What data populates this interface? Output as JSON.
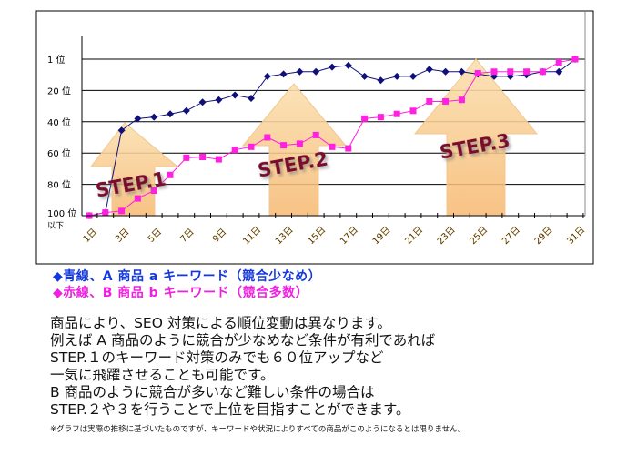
{
  "chart_data": {
    "type": "line",
    "title": "",
    "xlabel": "",
    "ylabel": "",
    "x": [
      1,
      2,
      3,
      4,
      5,
      6,
      7,
      8,
      9,
      10,
      11,
      12,
      13,
      14,
      15,
      16,
      17,
      18,
      19,
      20,
      21,
      22,
      23,
      24,
      25,
      26,
      27,
      28,
      29,
      30,
      31
    ],
    "x_tick_labels": [
      "1日",
      "3日",
      "5日",
      "7日",
      "9日",
      "11日",
      "13日",
      "15日",
      "17日",
      "19日",
      "21日",
      "23日",
      "25日",
      "27日",
      "29日",
      "31日"
    ],
    "y_tick_labels": [
      "1 位",
      "20 位",
      "40 位",
      "60 位",
      "80 位",
      "100 位"
    ],
    "y_bottom_sublabel": "以下",
    "ylim": [
      100,
      0
    ],
    "y_inverted": true,
    "grid": true,
    "series": [
      {
        "name": "青線、A 商品 a キーワード（競合少なめ）",
        "color": "#10107a",
        "marker": "diamond",
        "values": [
          100,
          98,
          45.5,
          38,
          37,
          35,
          33,
          27.5,
          26,
          23,
          25,
          11,
          9.5,
          8,
          8,
          5,
          4,
          11,
          13.5,
          11,
          11,
          6.5,
          8,
          8,
          9.5,
          11,
          11,
          10,
          8,
          8,
          0
        ]
      },
      {
        "name": "赤線、B 商品 b キーワード（競合多数）",
        "color": "#ff20e0",
        "marker": "square",
        "values": [
          100,
          98,
          97,
          89,
          84,
          74,
          63,
          62.5,
          64,
          58,
          56,
          50,
          55,
          54,
          48.5,
          56,
          57,
          38,
          37,
          35,
          33,
          27,
          27,
          26,
          9,
          8,
          8,
          8,
          8,
          2,
          0
        ]
      }
    ],
    "annotations": [
      {
        "text": "STEP.1",
        "near_x": 3
      },
      {
        "text": "STEP.2",
        "near_x": 14
      },
      {
        "text": "STEP.3",
        "near_x": 25
      }
    ]
  },
  "legend": {
    "blue": "◆青線、A 商品 a キーワード（競合少なめ）",
    "red": "◆赤線、B 商品 b キーワード（競合多数）"
  },
  "description_lines": [
    "商品により、SEO 対策による順位変動は異なります。",
    "例えば A 商品のように競合が少なめなど条件が有利であれば",
    "STEP.１のキーワード対策のみでも６０位アップなど",
    "一気に飛躍させることも可能です。",
    "B 商品のように競合が多いなど難しい条件の場合は",
    "STEP.２や３を行うことで上位を目指すことができます。"
  ],
  "note": "※グラフは実際の推移に基づいたものですが、キーワードや状況によりすべての商品がこのようになるとは限りません。"
}
